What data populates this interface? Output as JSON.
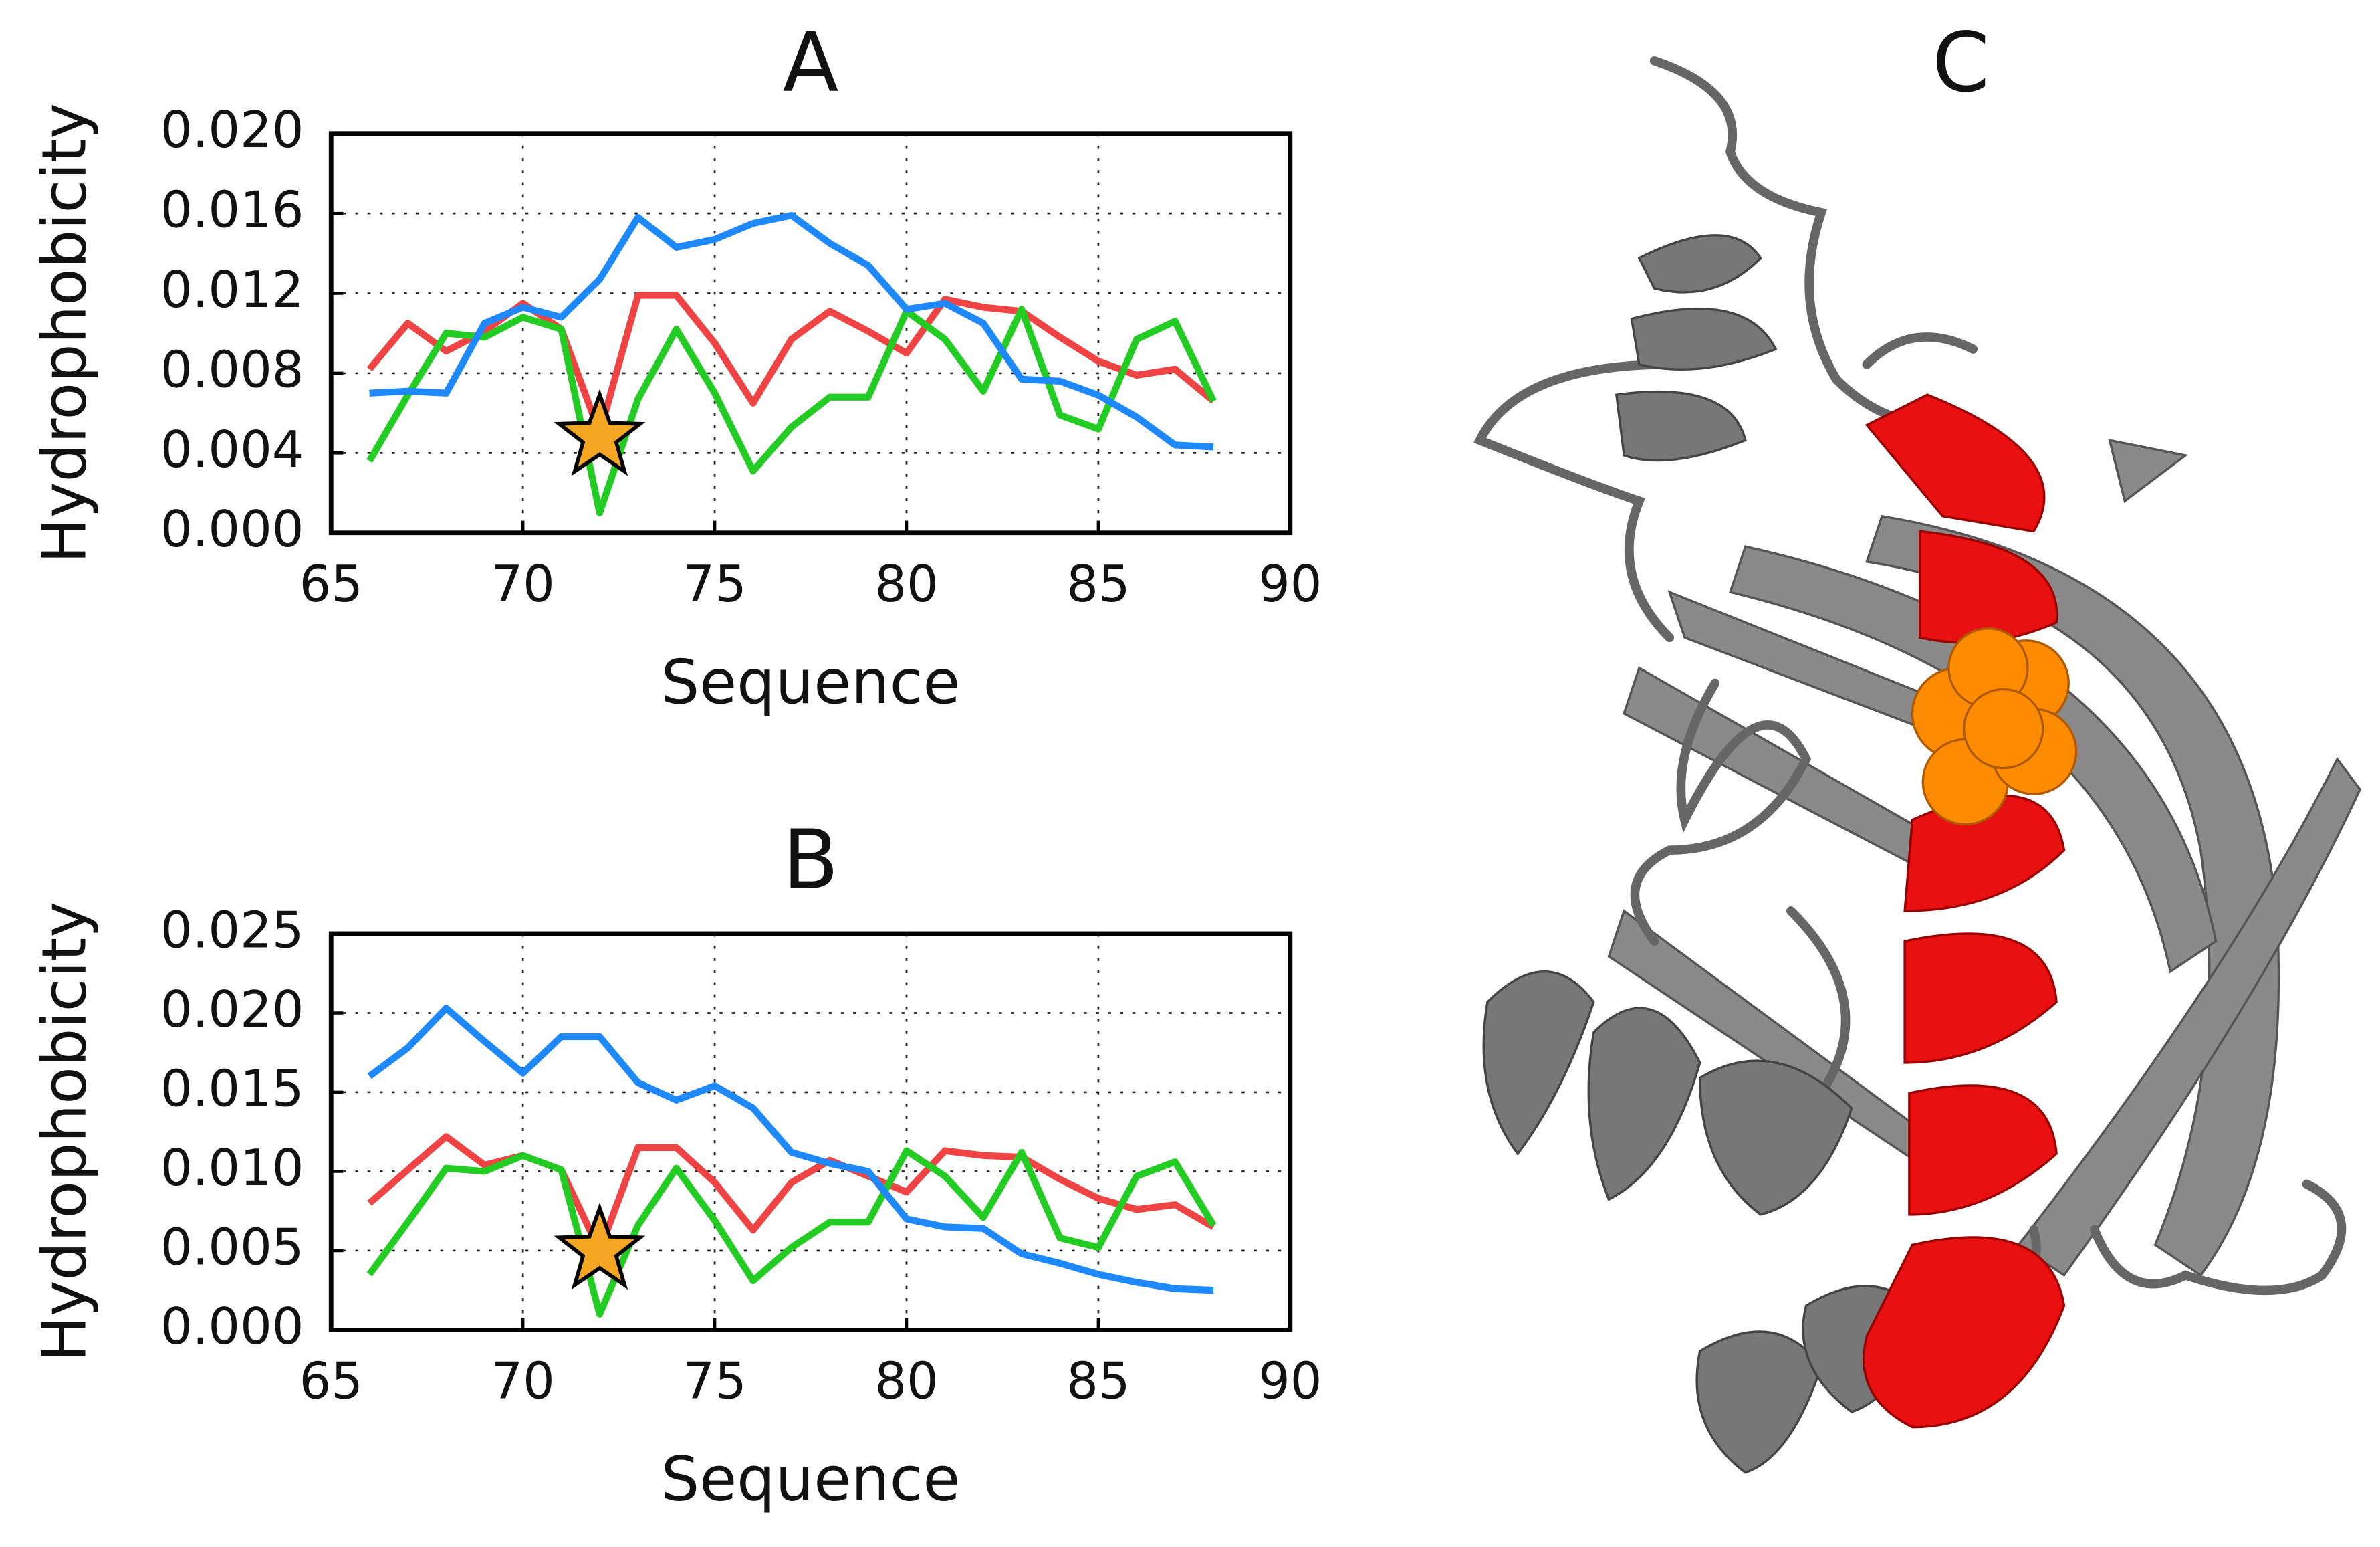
{
  "chart_data": [
    {
      "type": "line",
      "title": "A",
      "x_label": "Sequence",
      "y_label": "Hydrophobicity",
      "x": [
        66,
        67,
        68,
        69,
        70,
        71,
        72,
        73,
        74,
        75,
        76,
        77,
        78,
        79,
        80,
        81,
        82,
        83,
        84,
        85,
        86,
        87,
        88
      ],
      "xlim": [
        65,
        90
      ],
      "xticks": [
        65,
        70,
        75,
        80,
        85,
        90
      ],
      "ylim": [
        0,
        0.02
      ],
      "yticks": [
        {
          "value": 0,
          "label": "0.000"
        },
        0.004,
        0.008,
        0.012,
        0.016,
        {
          "value": 0.02,
          "label": "0.020"
        }
      ],
      "grid": true,
      "series": [
        {
          "color": "#f04444",
          "values": [
            0.0082,
            0.0105,
            0.0091,
            0.0101,
            0.0115,
            0.0102,
            0.005,
            0.0119,
            0.0119,
            0.0095,
            0.0065,
            0.0097,
            0.0111,
            0.0101,
            0.009,
            0.0117,
            0.0113,
            0.0111,
            0.0098,
            0.0086,
            0.0079,
            0.0082,
            0.0066
          ]
        },
        {
          "color": "#22cc22",
          "values": [
            0.0036,
            0.0069,
            0.01,
            0.0098,
            0.0108,
            0.0102,
            0.001,
            0.0067,
            0.0102,
            0.007,
            0.0031,
            0.0053,
            0.0068,
            0.0068,
            0.0111,
            0.0097,
            0.0071,
            0.0112,
            0.0059,
            0.0052,
            0.0097,
            0.0106,
            0.0066
          ]
        },
        {
          "color": "#1e88ff",
          "values": [
            0.007,
            0.0071,
            0.007,
            0.0105,
            0.0113,
            0.0108,
            0.0127,
            0.0158,
            0.0143,
            0.0147,
            0.0155,
            0.0159,
            0.0145,
            0.0134,
            0.0112,
            0.0115,
            0.0105,
            0.0077,
            0.0076,
            0.0069,
            0.0058,
            0.0044,
            0.0043
          ]
        }
      ],
      "marker": {
        "x": 72,
        "y": 0.0048,
        "color": "#f5a623"
      }
    },
    {
      "type": "line",
      "title": "B",
      "x_label": "Sequence",
      "y_label": "Hydrophobicity",
      "x": [
        66,
        67,
        68,
        69,
        70,
        71,
        72,
        73,
        74,
        75,
        76,
        77,
        78,
        79,
        80,
        81,
        82,
        83,
        84,
        85,
        86,
        87,
        88
      ],
      "xlim": [
        65,
        90
      ],
      "xticks": [
        65,
        70,
        75,
        80,
        85,
        90
      ],
      "ylim": [
        0,
        0.025
      ],
      "yticks": [
        {
          "value": 0,
          "label": "0.000"
        },
        0.005,
        {
          "value": 0.01,
          "label": "0.010"
        },
        0.015,
        {
          "value": 0.02,
          "label": "0.020"
        },
        0.025
      ],
      "grid": true,
      "series": [
        {
          "color": "#f04444",
          "values": [
            0.008,
            0.0101,
            0.0122,
            0.0104,
            0.011,
            0.0101,
            0.005,
            0.0115,
            0.0115,
            0.0093,
            0.0063,
            0.0093,
            0.0107,
            0.0097,
            0.0087,
            0.0113,
            0.011,
            0.0109,
            0.0095,
            0.0083,
            0.0076,
            0.0079,
            0.0065
          ]
        },
        {
          "color": "#22cc22",
          "values": [
            0.0035,
            0.0068,
            0.0102,
            0.01,
            0.011,
            0.0101,
            0.001,
            0.0066,
            0.0102,
            0.0069,
            0.0031,
            0.0052,
            0.0068,
            0.0068,
            0.0113,
            0.0097,
            0.0071,
            0.0112,
            0.0058,
            0.0052,
            0.0097,
            0.0106,
            0.0066
          ]
        },
        {
          "color": "#1e88ff",
          "values": [
            0.016,
            0.0178,
            0.0203,
            0.0182,
            0.0162,
            0.0185,
            0.0185,
            0.0156,
            0.0145,
            0.0154,
            0.014,
            0.0112,
            0.0105,
            0.01,
            0.007,
            0.0065,
            0.0064,
            0.0048,
            0.0042,
            0.0035,
            0.003,
            0.0026,
            0.0025
          ]
        }
      ],
      "marker": {
        "x": 72,
        "y": 0.005,
        "color": "#f5a623"
      }
    }
  ],
  "panel_c": {
    "title": "C"
  }
}
